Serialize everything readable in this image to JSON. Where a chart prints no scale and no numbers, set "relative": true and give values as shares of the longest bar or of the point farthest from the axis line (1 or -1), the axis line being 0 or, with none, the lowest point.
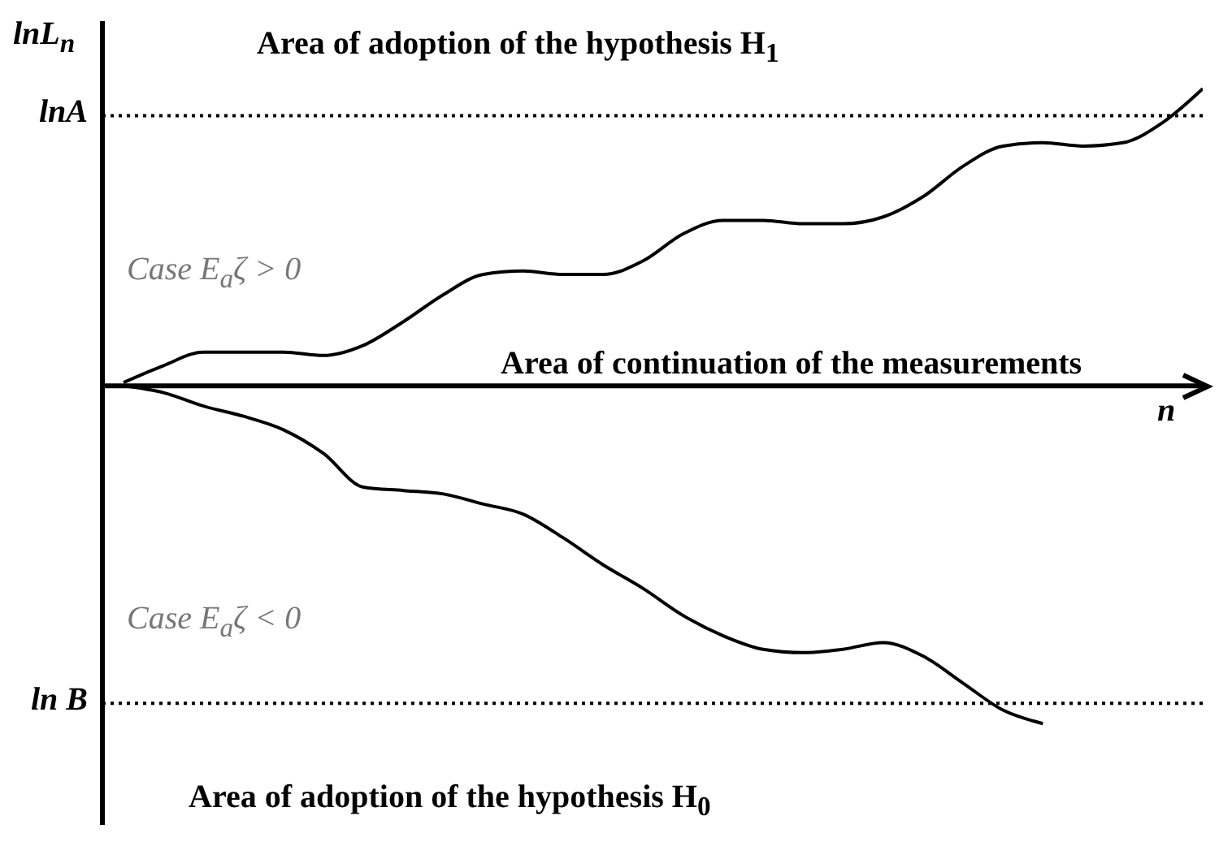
{
  "chart_data": {
    "type": "line",
    "relative": true,
    "xlabel": "n",
    "ylabel": "lnL$_{n}$",
    "categories": [
      null,
      null,
      null,
      null,
      null,
      null,
      null,
      null,
      null,
      null,
      null,
      null,
      null,
      null,
      null,
      null,
      null,
      null,
      null,
      null,
      null,
      null,
      null,
      null,
      null,
      null,
      null,
      null
    ],
    "series": [
      {
        "color": "#000000",
        "values": [
          0.01,
          0.06,
          0.1,
          0.1,
          0.1,
          0.09,
          0.12,
          0.19,
          0.27,
          0.33,
          0.34,
          0.33,
          0.33,
          0.37,
          0.45,
          0.49,
          0.49,
          0.48,
          0.48,
          0.5,
          0.56,
          0.65,
          0.71,
          0.72,
          0.71,
          0.72,
          0.78,
          0.88
        ]
      },
      {
        "color": "#000000",
        "values": [
          0,
          -0.02,
          -0.06,
          -0.09,
          -0.13,
          -0.2,
          -0.3,
          -0.31,
          -0.32,
          -0.35,
          -0.38,
          -0.45,
          -0.53,
          -0.6,
          -0.68,
          -0.74,
          -0.78,
          -0.79,
          -0.78,
          -0.76,
          -0.8,
          -0.88,
          -0.96,
          -1,
          null,
          null,
          null,
          null
        ]
      }
    ],
    "ref_lines": [
      {
        "axis": "y",
        "value": 0.8,
        "label": "lnA",
        "color": "#000000",
        "line_style": "dotted"
      },
      {
        "axis": "y",
        "value": -0.94,
        "label": "ln B",
        "color": "#000000",
        "line_style": "dotted"
      }
    ],
    "annotations": [
      "Area of adoption of the hypothesis H$_{1}$",
      "Area of continuation of the measurements",
      "Area of adoption of the hypothesis  H$_{0}$",
      "Case E$_{a}$ζ > 0",
      "Case E$_{a}$ζ < 0"
    ],
    "grid": false,
    "legend": false,
    "marker": "none",
    "line_style": "solid"
  }
}
